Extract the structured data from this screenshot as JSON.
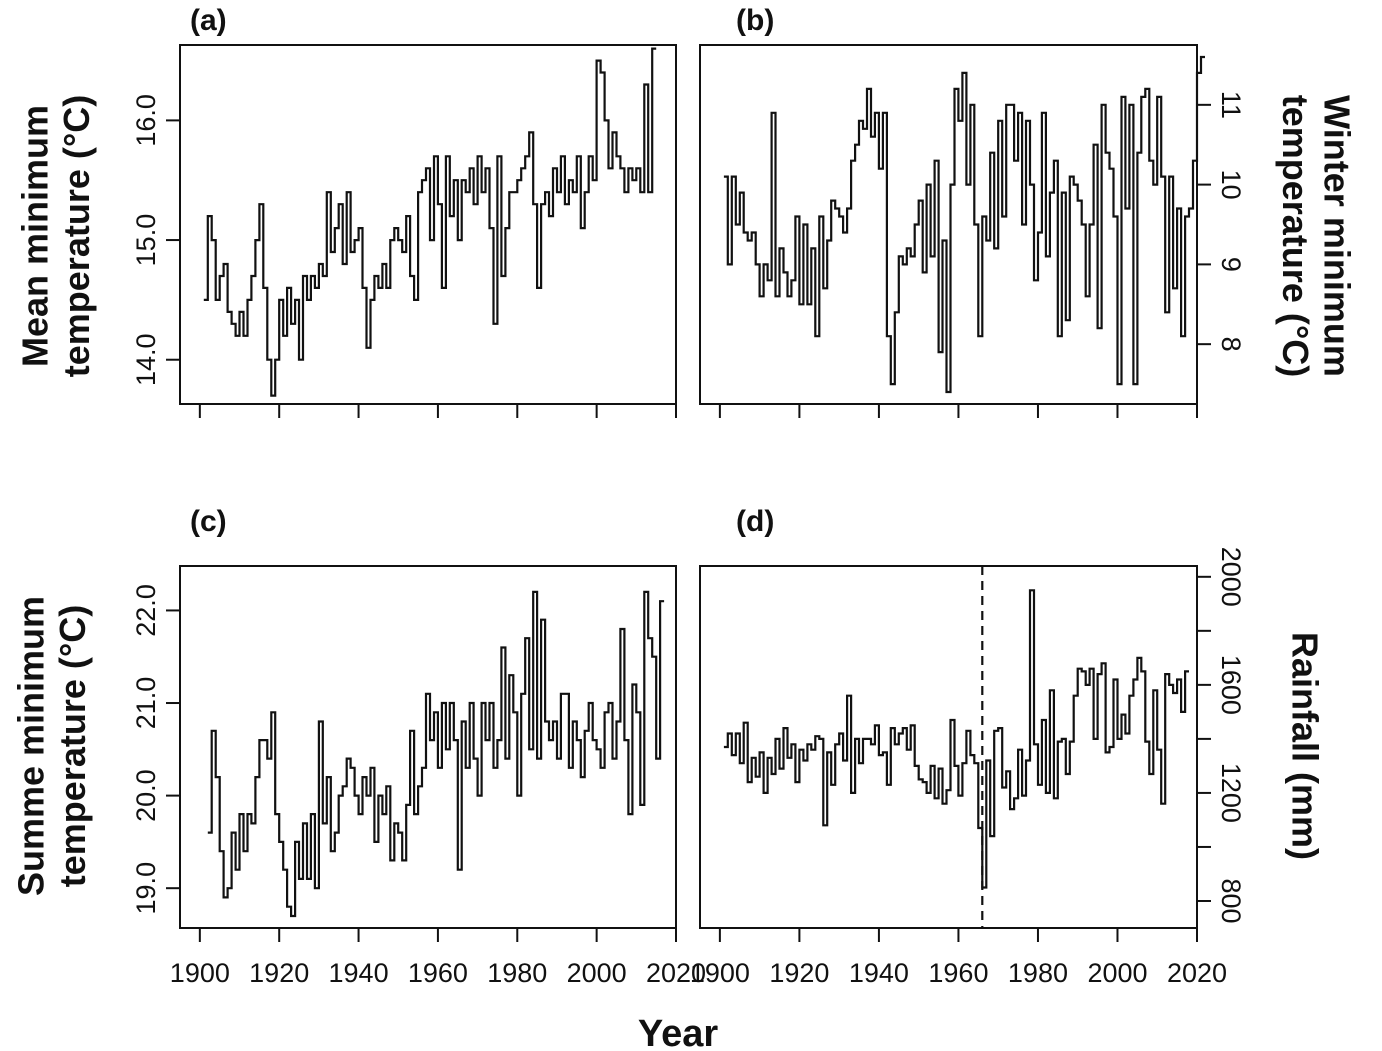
{
  "figure": {
    "x_title": "Year"
  },
  "chart_data": [
    {
      "type": "line",
      "panel_label": "(a)",
      "ylabel_lines": [
        "Mean minimum",
        "temperature (°C)"
      ],
      "ylabel_side": "left",
      "ytick_side": "left",
      "xlim": [
        1895,
        2020
      ],
      "ylim": [
        13.63,
        16.63
      ],
      "yticks": [
        14.0,
        15.0,
        16.0
      ],
      "ytick_labels": [
        "14.0",
        "15.0",
        "16.0"
      ],
      "xticks": [
        1900,
        1920,
        1940,
        1960,
        1980,
        2000,
        2020
      ],
      "xtick_labels": [],
      "x_start": 1901,
      "y": [
        14.5,
        15.2,
        15.0,
        14.5,
        14.7,
        14.8,
        14.4,
        14.3,
        14.2,
        14.4,
        14.2,
        14.5,
        14.7,
        15.0,
        15.3,
        14.6,
        14.0,
        13.7,
        14.0,
        14.5,
        14.2,
        14.6,
        14.3,
        14.5,
        14.0,
        14.7,
        14.5,
        14.7,
        14.6,
        14.8,
        14.7,
        15.4,
        14.9,
        15.1,
        15.3,
        14.8,
        15.4,
        14.9,
        15.0,
        15.1,
        14.6,
        14.1,
        14.5,
        14.7,
        14.6,
        14.8,
        14.6,
        15.0,
        15.1,
        15.0,
        14.9,
        15.2,
        14.7,
        14.5,
        15.4,
        15.5,
        15.6,
        15.0,
        15.7,
        15.3,
        14.6,
        15.7,
        15.2,
        15.5,
        15.0,
        15.5,
        15.4,
        15.6,
        15.3,
        15.7,
        15.4,
        15.6,
        15.1,
        14.3,
        15.7,
        14.7,
        15.1,
        15.4,
        15.4,
        15.5,
        15.6,
        15.7,
        15.9,
        15.3,
        14.6,
        15.3,
        15.4,
        15.2,
        15.6,
        15.4,
        15.7,
        15.3,
        15.5,
        15.4,
        15.7,
        15.1,
        15.4,
        15.7,
        15.5,
        16.5,
        16.4,
        16.0,
        15.6,
        15.9,
        15.7,
        15.6,
        15.4,
        15.6,
        15.5,
        15.6,
        15.4,
        16.3,
        15.4,
        16.6
      ]
    },
    {
      "type": "line",
      "panel_label": "(b)",
      "ylabel_lines": [
        "Winter minimum",
        "temperature (°C)"
      ],
      "ylabel_side": "right",
      "ytick_side": "right",
      "xlim": [
        1895,
        2020
      ],
      "ylim": [
        7.25,
        11.75
      ],
      "yticks": [
        8,
        9,
        10,
        11
      ],
      "ytick_labels": [
        "8",
        "9",
        "10",
        "11"
      ],
      "xticks": [
        1900,
        1920,
        1940,
        1960,
        1980,
        2000,
        2020
      ],
      "xtick_labels": [],
      "x_start": 1901,
      "y": [
        10.1,
        9.0,
        10.1,
        9.5,
        9.9,
        9.4,
        9.3,
        9.4,
        9.0,
        8.6,
        9.0,
        8.8,
        10.9,
        8.6,
        9.2,
        8.9,
        8.6,
        8.8,
        9.6,
        8.5,
        9.5,
        8.5,
        9.2,
        8.1,
        9.6,
        8.7,
        9.3,
        9.8,
        9.7,
        9.6,
        9.4,
        9.7,
        10.3,
        10.5,
        10.8,
        10.7,
        11.2,
        10.6,
        10.9,
        10.2,
        10.9,
        8.1,
        7.5,
        8.4,
        9.1,
        9.0,
        9.2,
        9.1,
        9.5,
        9.8,
        8.9,
        10.0,
        9.1,
        10.3,
        7.9,
        9.3,
        7.4,
        10.0,
        11.2,
        10.8,
        11.4,
        10.0,
        11.0,
        9.5,
        8.1,
        9.6,
        9.3,
        10.4,
        9.2,
        10.8,
        9.6,
        11.0,
        11.0,
        10.3,
        10.9,
        9.5,
        10.8,
        10.0,
        8.8,
        9.4,
        10.9,
        9.1,
        9.9,
        10.3,
        8.1,
        9.9,
        8.3,
        10.1,
        10.0,
        9.8,
        9.5,
        8.6,
        9.5,
        10.5,
        8.2,
        11.0,
        10.4,
        10.2,
        9.6,
        7.5,
        11.1,
        9.7,
        11.0,
        7.5,
        10.4,
        11.1,
        11.2,
        10.3,
        10.0,
        11.1,
        10.1,
        8.4,
        10.1,
        8.7,
        9.7,
        8.1,
        9.6,
        9.7,
        10.3,
        11.4,
        11.6
      ]
    },
    {
      "type": "line",
      "panel_label": "(c)",
      "ylabel_lines": [
        "Summe minimum",
        "temperature (°C)"
      ],
      "ylabel_side": "left",
      "ytick_side": "left",
      "xlim": [
        1895,
        2020
      ],
      "ylim": [
        18.57,
        22.48
      ],
      "yticks": [
        19.0,
        20.0,
        21.0,
        22.0
      ],
      "ytick_labels": [
        "19.0",
        "20.0",
        "21.0",
        "22.0"
      ],
      "xticks": [
        1900,
        1920,
        1940,
        1960,
        1980,
        2000,
        2020
      ],
      "xtick_labels": [
        "1900",
        "1920",
        "1940",
        "1960",
        "1980",
        "2000",
        "2020"
      ],
      "x_start": 1902,
      "y": [
        19.6,
        20.7,
        20.2,
        19.4,
        18.9,
        19.0,
        19.6,
        19.2,
        19.8,
        19.4,
        19.8,
        19.7,
        20.2,
        20.6,
        20.6,
        20.4,
        20.9,
        19.8,
        19.5,
        19.2,
        18.8,
        18.7,
        19.5,
        19.1,
        19.7,
        19.1,
        19.8,
        19.0,
        20.8,
        19.7,
        20.2,
        19.4,
        19.6,
        20.0,
        20.1,
        20.4,
        20.3,
        20.0,
        19.8,
        20.2,
        20.0,
        20.3,
        19.5,
        20.0,
        19.8,
        20.1,
        19.3,
        19.7,
        19.6,
        19.3,
        19.9,
        20.7,
        19.8,
        20.1,
        20.3,
        21.1,
        20.6,
        20.9,
        20.3,
        21.0,
        20.5,
        21.0,
        20.6,
        19.2,
        20.8,
        20.3,
        21.0,
        20.4,
        20.0,
        21.0,
        20.6,
        21.0,
        20.3,
        20.6,
        21.6,
        20.4,
        21.3,
        20.9,
        20.0,
        21.1,
        21.7,
        20.5,
        22.2,
        20.4,
        21.9,
        20.8,
        20.6,
        20.8,
        20.4,
        21.1,
        21.1,
        20.3,
        20.8,
        20.6,
        20.2,
        20.7,
        21.0,
        20.6,
        20.5,
        20.3,
        20.9,
        21.0,
        20.4,
        20.8,
        21.8,
        20.6,
        19.8,
        21.2,
        20.9,
        19.9,
        22.2,
        21.7,
        21.5,
        20.4,
        22.1
      ]
    },
    {
      "type": "line",
      "panel_label": "(d)",
      "ylabel_lines": [
        "Rainfall (mm)"
      ],
      "ylabel_side": "right",
      "ytick_side": "right",
      "xlim": [
        1895,
        2020
      ],
      "ylim": [
        700,
        2040
      ],
      "yticks": [
        800,
        1200,
        1600,
        2000
      ],
      "ytick_minor": [
        1000,
        1400,
        1800
      ],
      "ytick_labels": [
        "800",
        "1200",
        "1600",
        "2000"
      ],
      "xticks": [
        1900,
        1920,
        1940,
        1960,
        1980,
        2000,
        2020
      ],
      "xtick_labels": [
        "1900",
        "1920",
        "1940",
        "1960",
        "1980",
        "2000",
        "2020"
      ],
      "vline_x": 1966,
      "x_start": 1901,
      "y": [
        1370,
        1420,
        1340,
        1420,
        1310,
        1460,
        1240,
        1330,
        1260,
        1350,
        1200,
        1330,
        1270,
        1400,
        1290,
        1440,
        1330,
        1380,
        1240,
        1360,
        1320,
        1380,
        1360,
        1410,
        1400,
        1080,
        1350,
        1230,
        1380,
        1420,
        1320,
        1560,
        1200,
        1400,
        1310,
        1400,
        1400,
        1380,
        1450,
        1340,
        1350,
        1230,
        1440,
        1380,
        1420,
        1440,
        1360,
        1450,
        1300,
        1250,
        1240,
        1200,
        1300,
        1180,
        1290,
        1160,
        1210,
        1470,
        1300,
        1190,
        1310,
        1430,
        1340,
        1310,
        1070,
        850,
        1320,
        1040,
        1430,
        1440,
        1220,
        1280,
        1140,
        1180,
        1360,
        1190,
        1320,
        1950,
        1380,
        1230,
        1470,
        1200,
        1580,
        1180,
        1390,
        1400,
        1270,
        1390,
        1560,
        1660,
        1650,
        1600,
        1660,
        1400,
        1640,
        1680,
        1350,
        1370,
        1620,
        1400,
        1490,
        1420,
        1560,
        1620,
        1700,
        1650,
        1390,
        1270,
        1580,
        1360,
        1160,
        1640,
        1600,
        1570,
        1620,
        1500,
        1650
      ]
    }
  ]
}
